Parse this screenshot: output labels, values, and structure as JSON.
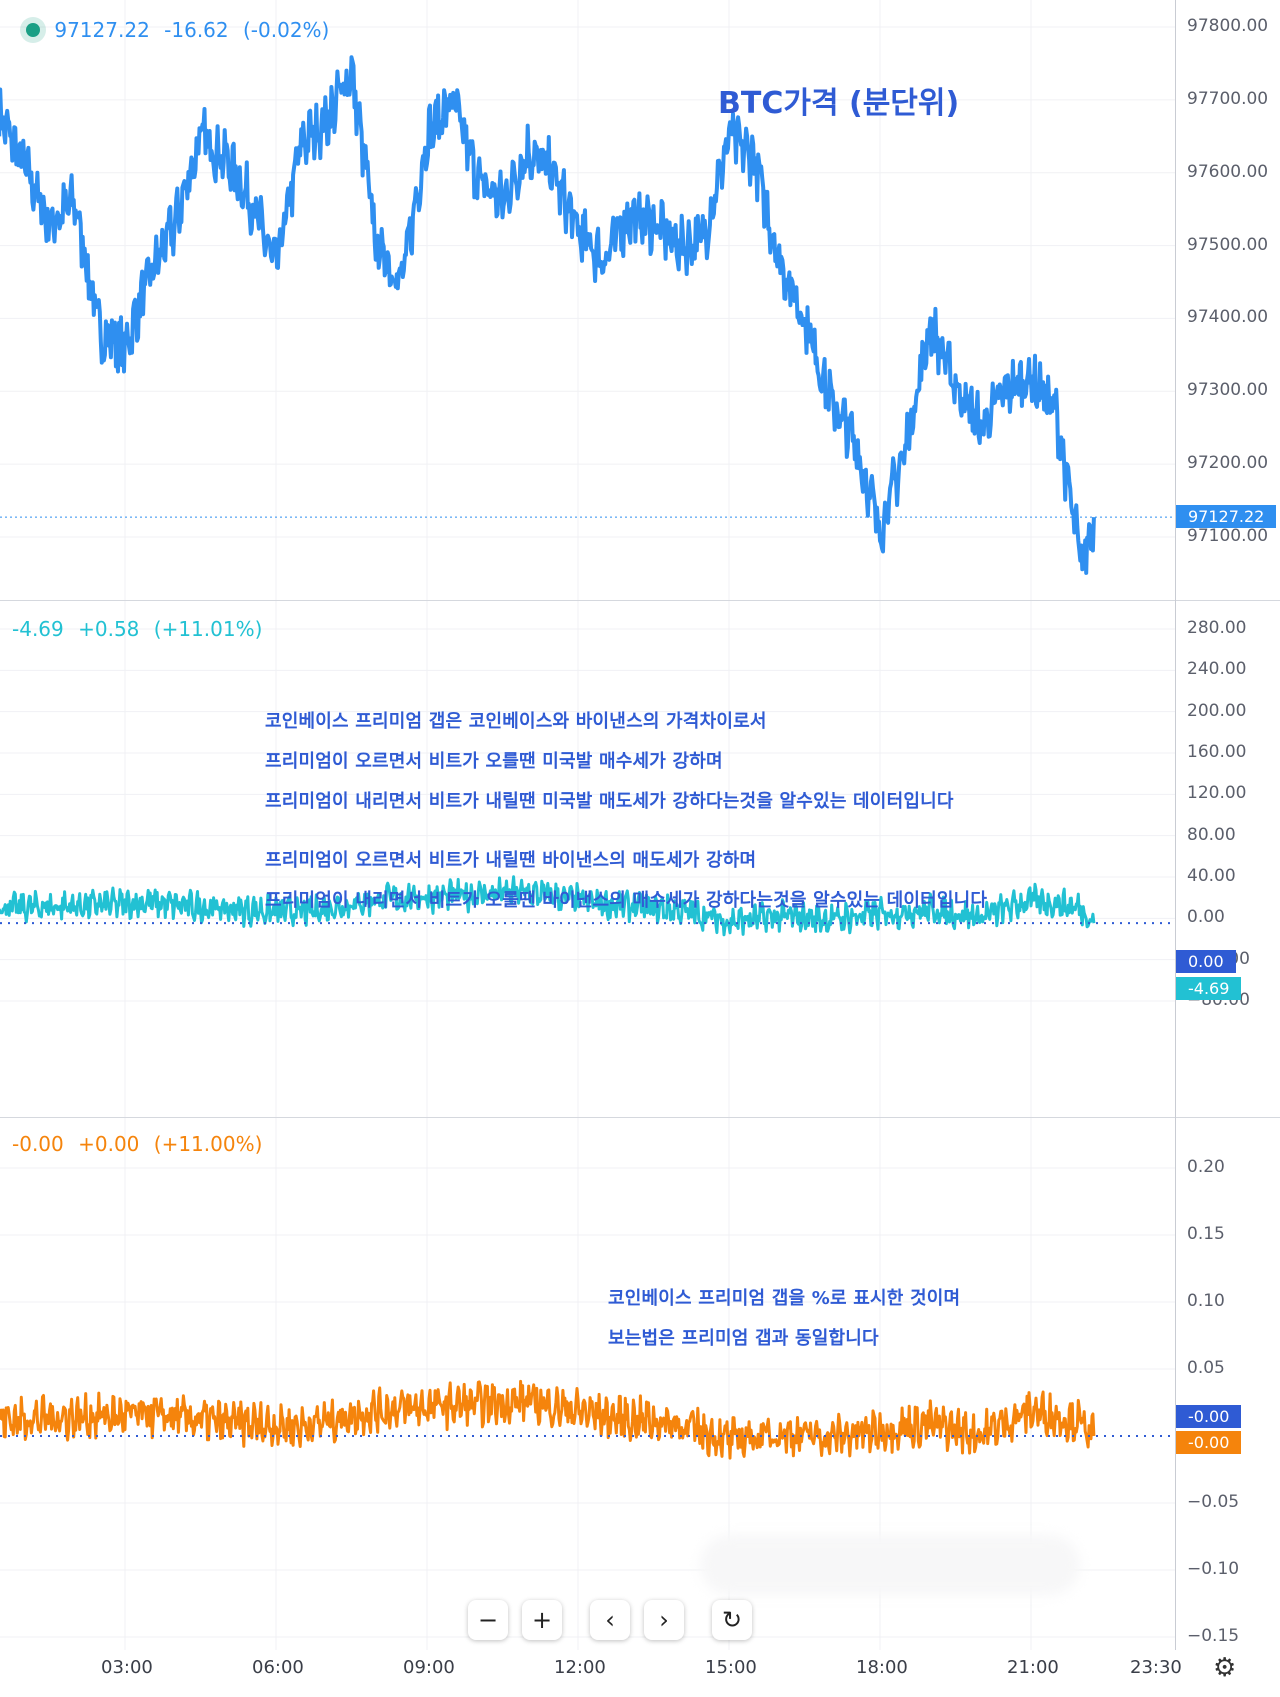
{
  "price_pane": {
    "legend": {
      "last": "97127.22",
      "change": "-16.62",
      "change_pct": "(-0.02%)"
    },
    "title": "BTC가격 (분단위)",
    "last_tag": "97127.22",
    "ticks": [
      "97800.00",
      "97700.00",
      "97600.00",
      "97500.00",
      "97400.00",
      "97300.00",
      "97200.00",
      "97100.00"
    ]
  },
  "premium_pane": {
    "legend": {
      "last": "-4.69",
      "change": "+0.58",
      "change_pct": "(+11.01%)"
    },
    "ticks": [
      "280.00",
      "240.00",
      "200.00",
      "160.00",
      "120.00",
      "80.00",
      "40.00",
      "0.00",
      "-40.00",
      "-80.00"
    ],
    "zero_tag": "0.00",
    "last_tag": "-4.69",
    "notes": [
      "코인베이스 프리미엄 갭은 코인베이스와 바이낸스의 가격차이로서",
      "프리미엄이 오르면서 비트가 오를땐  미국발 매수세가 강하며",
      "프리미엄이 내리면서 비트가 내릴땐 미국발 매도세가 강하다는것을 알수있는 데이터입니다",
      "프리미엄이 오르면서 비트가 내릴땐 바이낸스의 매도세가 강하며",
      "프리미엄이 내리면서 비트가 오를땐 바이낸스의 매수세가 강하다는것을 알수있는 데이터입니다"
    ]
  },
  "pct_pane": {
    "legend": {
      "last": "-0.00",
      "change": "+0.00",
      "change_pct": "(+11.00%)"
    },
    "ticks": [
      "0.20",
      "0.15",
      "0.10",
      "0.05",
      "-0.05",
      "-0.10",
      "-0.15"
    ],
    "zero_tag": "-0.00",
    "last_tag": "-0.00",
    "notes": [
      "코인베이스 프리미엄 갭을 %로 표시한 것이며",
      "보는법은 프리미엄 갭과 동일합니다"
    ]
  },
  "x_axis": {
    "labels": [
      "03:00",
      "06:00",
      "09:00",
      "12:00",
      "15:00",
      "18:00",
      "21:00",
      "23:30"
    ]
  },
  "toolbar": {
    "zoom_out": "−",
    "zoom_in": "+",
    "scroll_left": "‹",
    "scroll_right": "›",
    "reset": "↻"
  },
  "colors": {
    "price": "#2f8ff0",
    "premium": "#22c1d3",
    "pct": "#f5840c",
    "zero_tag": "#2f5bd4"
  },
  "chart_data": [
    {
      "type": "line",
      "title": "BTC가격 (분단위)",
      "x": [
        "00:30",
        "01:00",
        "01:30",
        "02:00",
        "02:30",
        "03:00",
        "03:30",
        "04:00",
        "04:30",
        "05:00",
        "05:30",
        "06:00",
        "06:30",
        "07:00",
        "07:30",
        "08:00",
        "08:30",
        "09:00",
        "09:30",
        "10:00",
        "10:30",
        "11:00",
        "11:30",
        "12:00",
        "12:30",
        "13:00",
        "13:30",
        "14:00",
        "14:30",
        "15:00",
        "15:30",
        "16:00",
        "16:30",
        "17:00",
        "17:30",
        "18:00",
        "18:30",
        "19:00",
        "19:30",
        "20:00",
        "20:30",
        "21:00",
        "21:30",
        "22:00",
        "22:15"
      ],
      "series": [
        {
          "values": [
            97680,
            97610,
            97530,
            97560,
            97380,
            97360,
            97460,
            97530,
            97650,
            97620,
            97560,
            97470,
            97640,
            97670,
            97740,
            97500,
            97450,
            97650,
            97700,
            97590,
            97560,
            97630,
            97600,
            97520,
            97480,
            97540,
            97530,
            97500,
            97510,
            97650,
            97620,
            97480,
            97400,
            97290,
            97230,
            97110,
            97220,
            97390,
            97310,
            97250,
            97300,
            97320,
            97270,
            97060,
            97127.22
          ]
        }
      ],
      "ylim": [
        97050,
        97800
      ]
    },
    {
      "type": "line",
      "x": [
        "00:30",
        "02:00",
        "03:30",
        "05:00",
        "06:30",
        "08:00",
        "09:30",
        "11:00",
        "12:30",
        "14:00",
        "15:00",
        "16:00",
        "17:00",
        "18:00",
        "19:00",
        "20:00",
        "21:00",
        "22:00",
        "22:15"
      ],
      "series": [
        {
          "values": [
            10,
            12,
            15,
            9,
            6,
            18,
            22,
            25,
            14,
            8,
            -3,
            2,
            -1,
            4,
            8,
            1,
            18,
            10,
            -4.69
          ]
        }
      ],
      "ylim": [
        -100,
        300
      ]
    },
    {
      "type": "line",
      "x": [
        "00:30",
        "02:00",
        "03:30",
        "05:00",
        "06:30",
        "08:00",
        "09:30",
        "11:00",
        "12:30",
        "14:00",
        "15:00",
        "16:00",
        "17:00",
        "18:00",
        "19:00",
        "20:00",
        "21:00",
        "22:00",
        "22:15"
      ],
      "series": [
        {
          "values": [
            0.012,
            0.014,
            0.016,
            0.01,
            0.007,
            0.019,
            0.023,
            0.026,
            0.015,
            0.009,
            -0.003,
            0.002,
            -0.001,
            0.004,
            0.009,
            0.001,
            0.019,
            0.01,
            -0.0
          ]
        }
      ],
      "ylim": [
        -0.16,
        0.22
      ]
    }
  ]
}
